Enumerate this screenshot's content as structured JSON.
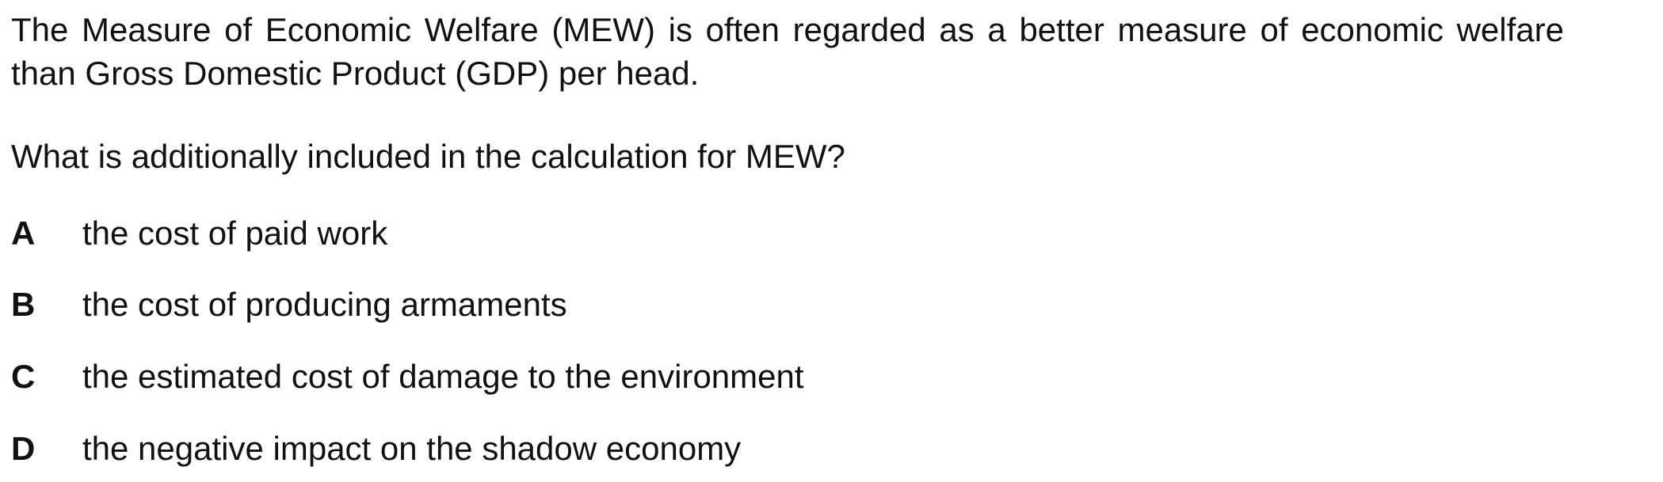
{
  "question": {
    "stem": "The Measure of Economic Welfare (MEW) is often regarded as a better measure of economic welfare than Gross Domestic Product (GDP) per head.",
    "prompt": "What is additionally included in the calculation for MEW?",
    "options": [
      {
        "letter": "A",
        "text": "the cost of paid work"
      },
      {
        "letter": "B",
        "text": "the cost of producing armaments"
      },
      {
        "letter": "C",
        "text": "the estimated cost of damage to the environment"
      },
      {
        "letter": "D",
        "text": "the negative impact on the shadow economy"
      }
    ]
  }
}
